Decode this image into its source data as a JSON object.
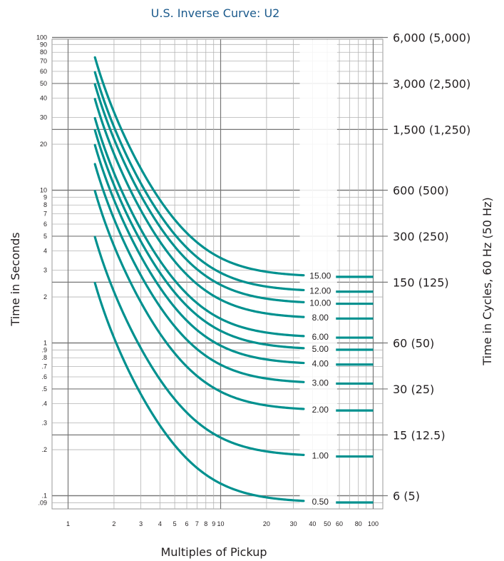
{
  "chart_data": {
    "type": "line",
    "title": "U.S. Inverse Curve: U2",
    "xlabel": "Multiples of Pickup",
    "ylabel": "Time in Seconds",
    "y2label": "Time in Cycles, 60 Hz (50 Hz)",
    "x_scale": "log",
    "y_scale": "log",
    "xlim": [
      0.8,
      120
    ],
    "ylim": [
      0.08,
      110
    ],
    "grid": true,
    "x_ticks": [
      {
        "value": 1,
        "label": "1"
      },
      {
        "value": 2,
        "label": "2"
      },
      {
        "value": 3,
        "label": "3"
      },
      {
        "value": 4,
        "label": "4"
      },
      {
        "value": 5,
        "label": "5"
      },
      {
        "value": 6,
        "label": "6"
      },
      {
        "value": 7,
        "label": "7"
      },
      {
        "value": 8,
        "label": "8"
      },
      {
        "value": 9,
        "label": "9"
      },
      {
        "value": 10,
        "label": "10"
      },
      {
        "value": 20,
        "label": "20"
      },
      {
        "value": 30,
        "label": "30"
      },
      {
        "value": 40,
        "label": "40"
      },
      {
        "value": 50,
        "label": "50"
      },
      {
        "value": 60,
        "label": "60"
      },
      {
        "value": 80,
        "label": "80"
      },
      {
        "value": 100,
        "label": "100"
      }
    ],
    "x_minor_gridlines": [
      70,
      90
    ],
    "y_ticks": [
      {
        "value": 0.09,
        "label": ".09"
      },
      {
        "value": 0.1,
        "label": ".1"
      },
      {
        "value": 0.2,
        "label": ".2"
      },
      {
        "value": 0.3,
        "label": ".3"
      },
      {
        "value": 0.4,
        "label": ".4"
      },
      {
        "value": 0.5,
        "label": ".5"
      },
      {
        "value": 0.6,
        "label": ".6"
      },
      {
        "value": 0.7,
        "label": ".7"
      },
      {
        "value": 0.8,
        "label": ".8"
      },
      {
        "value": 0.9,
        "label": ".9"
      },
      {
        "value": 1,
        "label": "1"
      },
      {
        "value": 2,
        "label": "2"
      },
      {
        "value": 3,
        "label": "3"
      },
      {
        "value": 4,
        "label": "4"
      },
      {
        "value": 5,
        "label": "5"
      },
      {
        "value": 6,
        "label": "6"
      },
      {
        "value": 7,
        "label": "7"
      },
      {
        "value": 8,
        "label": "8"
      },
      {
        "value": 9,
        "label": "9"
      },
      {
        "value": 10,
        "label": "10"
      },
      {
        "value": 20,
        "label": "20"
      },
      {
        "value": 30,
        "label": "30"
      },
      {
        "value": 40,
        "label": "40"
      },
      {
        "value": 50,
        "label": "50"
      },
      {
        "value": 60,
        "label": "60"
      },
      {
        "value": 70,
        "label": "70"
      },
      {
        "value": 80,
        "label": "80"
      },
      {
        "value": 90,
        "label": "90"
      },
      {
        "value": 100,
        "label": "100"
      }
    ],
    "y2_ticks": [
      {
        "value": 100,
        "label": "6,000 (5,000)"
      },
      {
        "value": 50,
        "label": "3,000 (2,500)"
      },
      {
        "value": 25,
        "label": "1,500 (1,250)"
      },
      {
        "value": 10,
        "label": "600 (500)"
      },
      {
        "value": 5,
        "label": "300 (250)"
      },
      {
        "value": 2.5,
        "label": "150 (125)"
      },
      {
        "value": 1,
        "label": "60 (50)"
      },
      {
        "value": 0.5,
        "label": "30 (25)"
      },
      {
        "value": 0.25,
        "label": "15 (12.5)"
      },
      {
        "value": 0.1,
        "label": "6 (5)"
      }
    ],
    "series_color": "#00918f",
    "curve_formula": "t = TD * (0.18 + 5.95 / (M^2 - 1))",
    "x_start": 1.5,
    "x_end": 100,
    "series": [
      {
        "name": "0.50",
        "time_dial": 0.5
      },
      {
        "name": "1.00",
        "time_dial": 1.0
      },
      {
        "name": "2.00",
        "time_dial": 2.0
      },
      {
        "name": "3.00",
        "time_dial": 3.0
      },
      {
        "name": "4.00",
        "time_dial": 4.0
      },
      {
        "name": "5.00",
        "time_dial": 5.0
      },
      {
        "name": "6.00",
        "time_dial": 6.0
      },
      {
        "name": "8.00",
        "time_dial": 8.0
      },
      {
        "name": "10.00",
        "time_dial": 10.0
      },
      {
        "name": "12.00",
        "time_dial": 12.0
      },
      {
        "name": "15.00",
        "time_dial": 15.0
      }
    ]
  }
}
